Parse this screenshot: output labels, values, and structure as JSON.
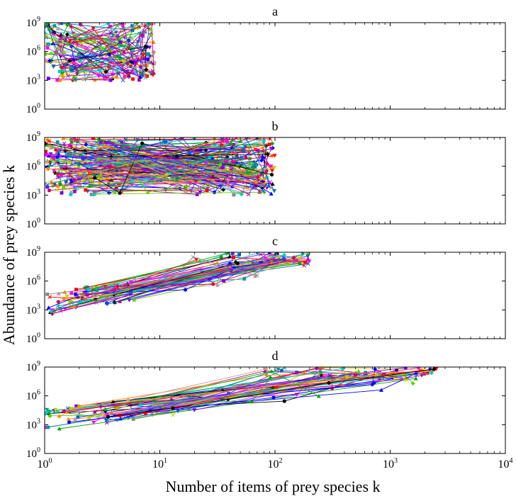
{
  "figure": {
    "ylabel": "Abundance of prey species k",
    "xlabel": "Number of items of prey species k"
  },
  "chart_data": [
    {
      "type": "line",
      "title": "a",
      "xscale": "log",
      "yscale": "log",
      "xlim": [
        1,
        10000
      ],
      "ylim": [
        1,
        1000000000
      ],
      "x_ticks": [
        1,
        10,
        100,
        1000,
        10000
      ],
      "x_tick_labels": [
        "",
        "",
        "",
        "",
        ""
      ],
      "y_ticks": [
        1,
        1000,
        1000000,
        1000000000
      ],
      "y_tick_labels": [
        "10^0",
        "10^3",
        "10^6",
        "10^9"
      ],
      "grid": false,
      "legend": "none",
      "n_series": 85,
      "x_range_data": [
        1,
        9
      ]
    },
    {
      "type": "line",
      "title": "b",
      "xscale": "log",
      "yscale": "log",
      "xlim": [
        1,
        10000
      ],
      "ylim": [
        1,
        1000000000
      ],
      "x_ticks": [
        1,
        10,
        100,
        1000,
        10000
      ],
      "x_tick_labels": [
        "",
        "",
        "",
        "",
        ""
      ],
      "y_ticks": [
        1,
        1000,
        1000000,
        1000000000
      ],
      "y_tick_labels": [
        "10^0",
        "10^3",
        "10^6",
        "10^9"
      ],
      "grid": false,
      "legend": "none",
      "n_series": 170,
      "x_range_data": [
        1,
        100
      ]
    },
    {
      "type": "line",
      "title": "c",
      "xscale": "log",
      "yscale": "log",
      "xlim": [
        1,
        10000
      ],
      "ylim": [
        1,
        1000000000
      ],
      "x_ticks": [
        1,
        10,
        100,
        1000,
        10000
      ],
      "x_tick_labels": [
        "",
        "",
        "",
        "",
        ""
      ],
      "y_ticks": [
        1,
        1000,
        1000000,
        1000000000
      ],
      "y_tick_labels": [
        "10^0",
        "10^3",
        "10^6",
        "10^9"
      ],
      "grid": false,
      "legend": "none",
      "n_series": 60,
      "x_range_data": [
        1,
        200
      ]
    },
    {
      "type": "line",
      "title": "d",
      "xscale": "log",
      "yscale": "log",
      "xlim": [
        1,
        10000
      ],
      "ylim": [
        1,
        1000000000
      ],
      "x_ticks": [
        1,
        10,
        100,
        1000,
        10000
      ],
      "x_tick_labels": [
        "10^0",
        "10^1",
        "10^2",
        "10^3",
        "10^4"
      ],
      "y_ticks": [
        1,
        1000,
        1000000,
        1000000000
      ],
      "y_tick_labels": [
        "10^0",
        "10^3",
        "10^6",
        "10^9"
      ],
      "grid": false,
      "legend": "none",
      "n_series": 55,
      "x_range_data": [
        1,
        2600
      ]
    }
  ],
  "colors": {
    "series_palette": [
      "#0000ff",
      "#ff0000",
      "#00aa00",
      "#ff00ff",
      "#00cccc",
      "#cccc00",
      "#000000",
      "#9900cc",
      "#ff8800",
      "#009999",
      "#cc0066",
      "#888888",
      "#66cc00",
      "#0066cc",
      "#cc9999",
      "#6600ff"
    ],
    "axes": "#000000",
    "background": "#ffffff"
  }
}
